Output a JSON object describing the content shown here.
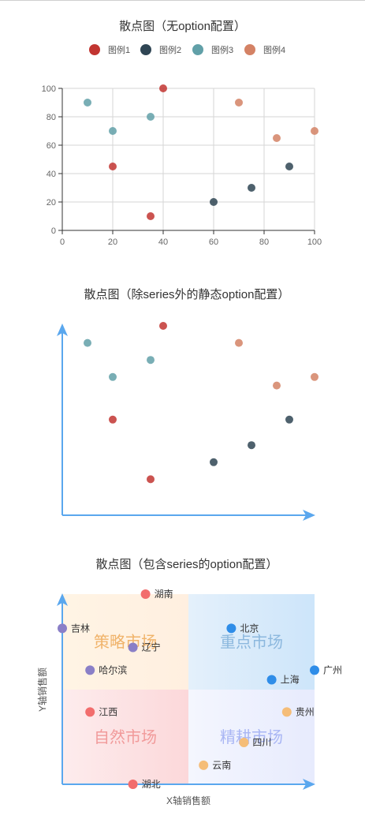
{
  "chart_data": [
    {
      "type": "scatter",
      "title": "散点图（无option配置）",
      "xlim": [
        0,
        100
      ],
      "ylim": [
        0,
        100
      ],
      "xticks": [
        "0",
        "20",
        "40",
        "60",
        "80",
        "100"
      ],
      "yticks": [
        "0",
        "20",
        "40",
        "60",
        "80",
        "100"
      ],
      "grid": true,
      "legend_position": "top",
      "series": [
        {
          "name": "图例1",
          "color": "#c23531",
          "points": [
            [
              20,
              45
            ],
            [
              35,
              10
            ],
            [
              40,
              100
            ]
          ]
        },
        {
          "name": "图例2",
          "color": "#2f4554",
          "points": [
            [
              60,
              20
            ],
            [
              75,
              30
            ],
            [
              90,
              45
            ]
          ]
        },
        {
          "name": "图例3",
          "color": "#61a0a8",
          "points": [
            [
              10,
              90
            ],
            [
              20,
              70
            ],
            [
              35,
              80
            ]
          ]
        },
        {
          "name": "图例4",
          "color": "#d48265",
          "points": [
            [
              70,
              90
            ],
            [
              85,
              65
            ],
            [
              100,
              70
            ]
          ]
        }
      ]
    },
    {
      "type": "scatter",
      "title": "散点图（除series外的静态option配置）",
      "xlim": [
        0,
        100
      ],
      "ylim": [
        0,
        100
      ],
      "grid": false,
      "axis_color": "#5aa7ee",
      "series": [
        {
          "color": "#c23531",
          "points": [
            [
              20,
              45
            ],
            [
              35,
              10
            ],
            [
              40,
              100
            ]
          ]
        },
        {
          "color": "#2f4554",
          "points": [
            [
              60,
              20
            ],
            [
              75,
              30
            ],
            [
              90,
              45
            ]
          ]
        },
        {
          "color": "#61a0a8",
          "points": [
            [
              10,
              90
            ],
            [
              20,
              70
            ],
            [
              35,
              80
            ]
          ]
        },
        {
          "color": "#d48265",
          "points": [
            [
              70,
              90
            ],
            [
              85,
              65
            ],
            [
              100,
              70
            ]
          ]
        }
      ]
    },
    {
      "type": "scatter",
      "title": "散点图（包含series的option配置）",
      "xlabel": "X轴销售额",
      "ylabel": "Y轴销售额",
      "xlim": [
        0,
        100
      ],
      "ylim": [
        0,
        100
      ],
      "axis_color": "#5aa7ee",
      "zones": [
        {
          "label": "策略市场",
          "quadrant": "top-left",
          "text_color": "#f0b36a",
          "fill_from": "#fff4e4",
          "fill_to": "#ffefe0"
        },
        {
          "label": "重点市场",
          "quadrant": "top-right",
          "text_color": "#8cb8de",
          "fill_from": "#e4f0fb",
          "fill_to": "#cde5fa"
        },
        {
          "label": "自然市场",
          "quadrant": "bottom-left",
          "text_color": "#f19a9a",
          "fill_from": "#fdeced",
          "fill_to": "#fcd8da"
        },
        {
          "label": "精耕市场",
          "quadrant": "bottom-right",
          "text_color": "#a9b6f4",
          "fill_from": "#f4f6fe",
          "fill_to": "#e7ebfd"
        }
      ],
      "points": [
        {
          "name": "湖南",
          "x": 33,
          "y": 100,
          "color": "#f26d6d"
        },
        {
          "name": "吉林",
          "x": 0,
          "y": 82,
          "color": "#8a7fc7"
        },
        {
          "name": "北京",
          "x": 67,
          "y": 82,
          "color": "#2f8de8"
        },
        {
          "name": "辽宁",
          "x": 28,
          "y": 72,
          "color": "#8a7fc7"
        },
        {
          "name": "哈尔滨",
          "x": 11,
          "y": 60,
          "color": "#8a7fc7"
        },
        {
          "name": "广州",
          "x": 100,
          "y": 60,
          "color": "#2f8de8"
        },
        {
          "name": "上海",
          "x": 83,
          "y": 55,
          "color": "#2f8de8"
        },
        {
          "name": "江西",
          "x": 11,
          "y": 38,
          "color": "#f26d6d"
        },
        {
          "name": "贵州",
          "x": 89,
          "y": 38,
          "color": "#f5bd78"
        },
        {
          "name": "四川",
          "x": 72,
          "y": 22,
          "color": "#f5bd78"
        },
        {
          "name": "云南",
          "x": 56,
          "y": 10,
          "color": "#f5bd78"
        },
        {
          "name": "湖北",
          "x": 28,
          "y": 0,
          "color": "#f26d6d"
        }
      ]
    }
  ]
}
